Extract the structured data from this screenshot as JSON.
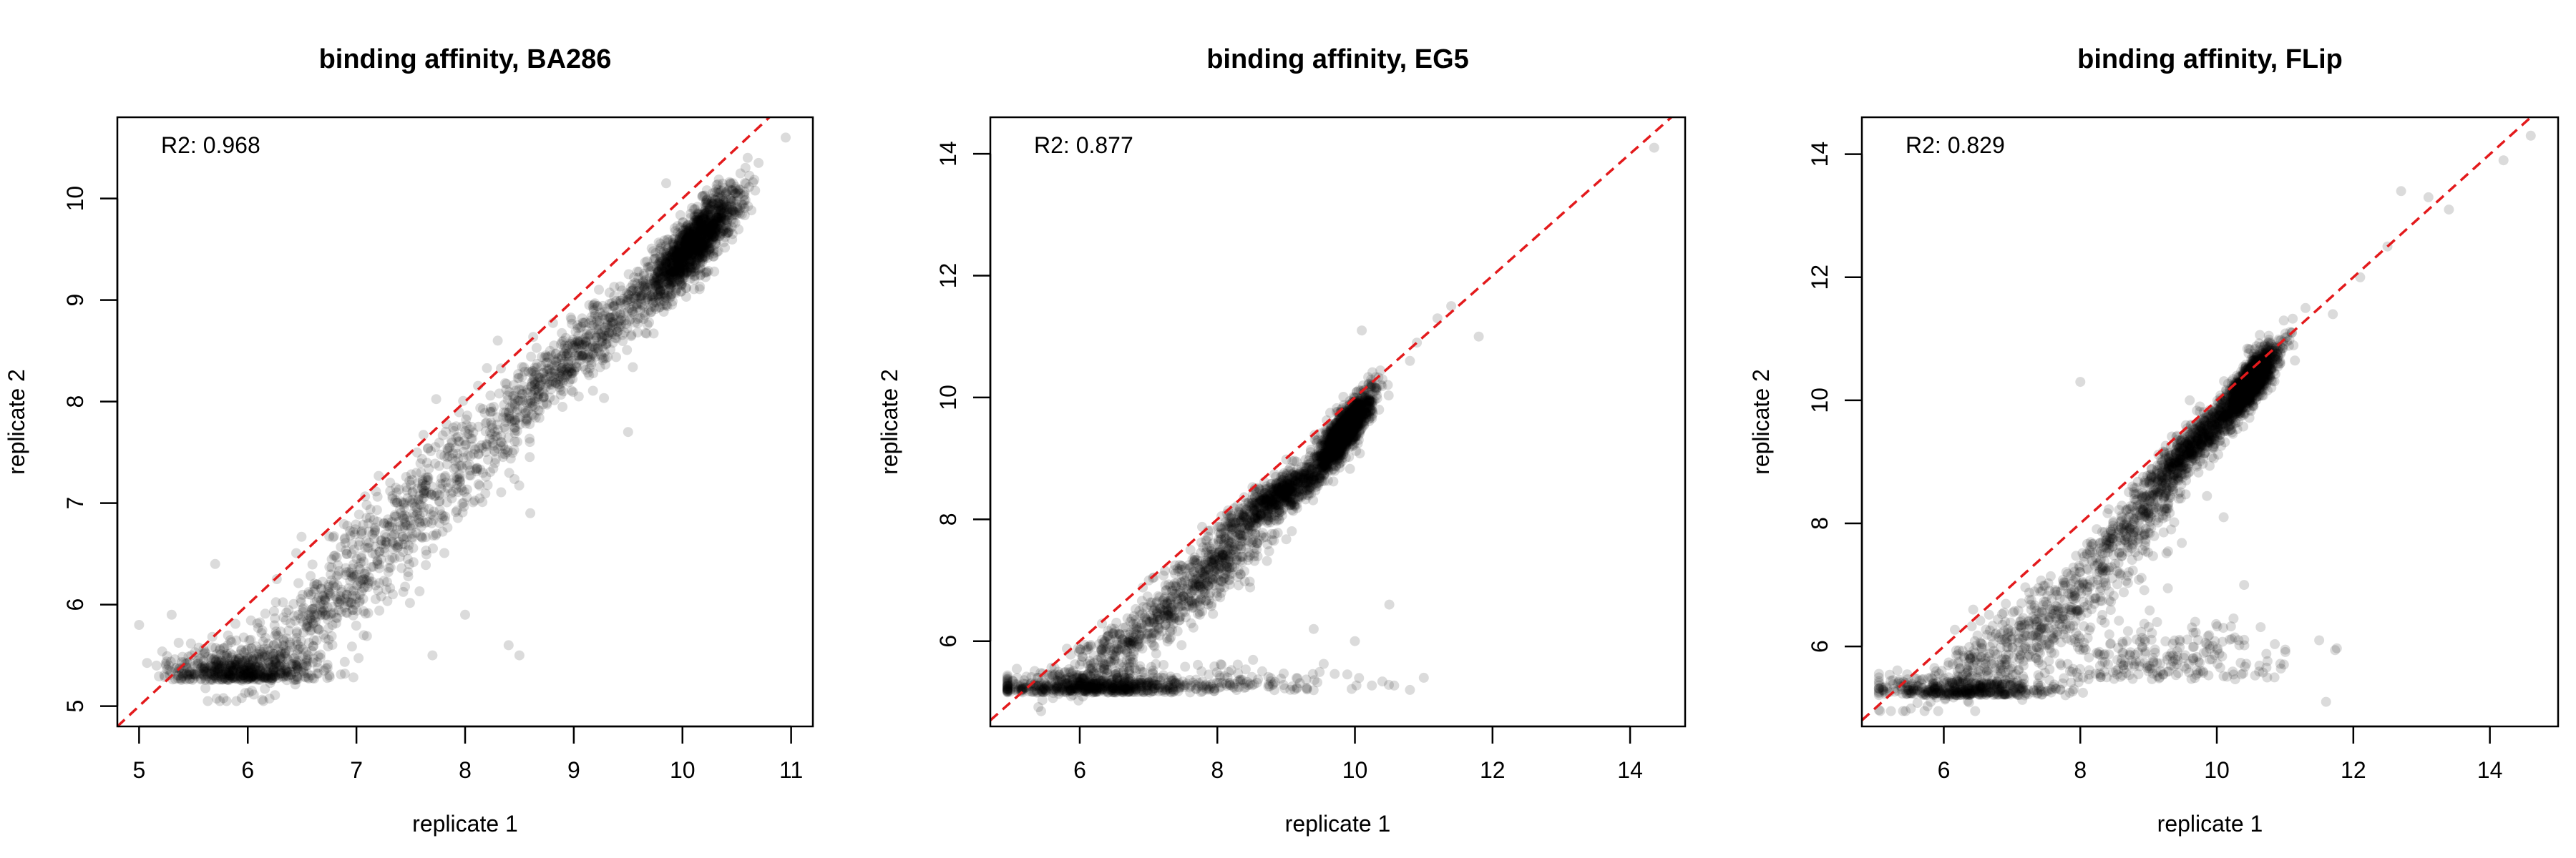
{
  "chart_data": [
    {
      "type": "scatter",
      "title": "binding affinity, BA286",
      "xlabel": "replicate 1",
      "ylabel": "replicate 2",
      "xlim": [
        4.8,
        11.2
      ],
      "ylim": [
        4.8,
        10.8
      ],
      "xticks": [
        5,
        6,
        7,
        8,
        9,
        10,
        11
      ],
      "yticks": [
        5,
        6,
        7,
        8,
        9,
        10
      ],
      "annotation": "R2: 0.968",
      "reference_line": {
        "slope": 1,
        "intercept": 0,
        "color": "#e31a1c",
        "style": "dashed"
      },
      "point_color": "#000000",
      "point_opacity": 0.14,
      "clusters": [
        {
          "cx": 10.1,
          "cy": 9.55,
          "sx": 0.22,
          "sy": 0.25,
          "n": 1300,
          "diag": true,
          "slope": 1.05
        },
        {
          "cx": 9.1,
          "cy": 8.55,
          "sx": 0.45,
          "sy": 0.28,
          "n": 500,
          "diag": true,
          "slope": 0.9
        },
        {
          "cx": 7.9,
          "cy": 7.3,
          "sx": 0.55,
          "sy": 0.45,
          "n": 450,
          "diag": true,
          "slope": 0.95
        },
        {
          "cx": 6.8,
          "cy": 6.1,
          "sx": 0.45,
          "sy": 0.45,
          "n": 400,
          "diag": true,
          "slope": 0.9
        },
        {
          "cx": 5.95,
          "cy": 5.3,
          "sx": 0.35,
          "sy": 0.15,
          "n": 600,
          "diag": false
        }
      ],
      "outliers": [
        [
          10.95,
          10.6
        ],
        [
          10.7,
          10.35
        ],
        [
          8.3,
          8.6
        ],
        [
          8.6,
          6.9
        ],
        [
          8.4,
          5.6
        ],
        [
          8.5,
          5.5
        ],
        [
          8.0,
          5.9
        ],
        [
          7.7,
          5.5
        ],
        [
          9.5,
          7.7
        ],
        [
          5.0,
          5.8
        ],
        [
          5.3,
          5.9
        ],
        [
          5.7,
          6.4
        ],
        [
          9.85,
          10.15
        ],
        [
          10.6,
          10.4
        ]
      ]
    },
    {
      "type": "scatter",
      "title": "binding affinity, EG5",
      "xlabel": "replicate 1",
      "ylabel": "replicate 2",
      "xlim": [
        4.7,
        14.8
      ],
      "ylim": [
        4.6,
        14.6
      ],
      "xticks": [
        6,
        8,
        10,
        12,
        14
      ],
      "yticks": [
        6,
        8,
        10,
        12,
        14
      ],
      "annotation": "R2: 0.877",
      "reference_line": {
        "slope": 1,
        "intercept": 0,
        "color": "#e31a1c",
        "style": "dashed"
      },
      "point_color": "#000000",
      "point_opacity": 0.14,
      "clusters": [
        {
          "cx": 9.85,
          "cy": 9.45,
          "sx": 0.2,
          "sy": 0.3,
          "n": 1300,
          "diag": true,
          "slope": 1.3
        },
        {
          "cx": 8.9,
          "cy": 8.4,
          "sx": 0.4,
          "sy": 0.25,
          "n": 700,
          "diag": true,
          "slope": 0.7
        },
        {
          "cx": 7.9,
          "cy": 7.2,
          "sx": 0.45,
          "sy": 0.45,
          "n": 450,
          "diag": true,
          "slope": 0.8
        },
        {
          "cx": 6.7,
          "cy": 6.0,
          "sx": 0.55,
          "sy": 0.4,
          "n": 350,
          "diag": true,
          "slope": 0.7
        },
        {
          "cx": 6.2,
          "cy": 5.2,
          "sx": 0.75,
          "sy": 0.15,
          "n": 650,
          "diag": false
        },
        {
          "cx": 8.3,
          "cy": 5.25,
          "sx": 1.0,
          "sy": 0.2,
          "n": 120,
          "diag": false
        }
      ],
      "outliers": [
        [
          14.35,
          14.1
        ],
        [
          11.8,
          11.0
        ],
        [
          11.4,
          11.5
        ],
        [
          10.1,
          11.1
        ],
        [
          10.8,
          10.6
        ],
        [
          10.4,
          10.3
        ],
        [
          10.5,
          6.6
        ],
        [
          10.0,
          6.0
        ],
        [
          10.8,
          5.2
        ],
        [
          9.4,
          6.2
        ],
        [
          11.2,
          11.3
        ],
        [
          10.9,
          10.9
        ]
      ]
    },
    {
      "type": "scatter",
      "title": "binding affinity, FLip",
      "xlabel": "replicate 1",
      "ylabel": "replicate 2",
      "xlim": [
        4.8,
        15.0
      ],
      "ylim": [
        4.7,
        14.6
      ],
      "xticks": [
        6,
        8,
        10,
        12,
        14
      ],
      "yticks": [
        6,
        8,
        10,
        12,
        14
      ],
      "annotation": "R2: 0.829",
      "reference_line": {
        "slope": 1,
        "intercept": 0,
        "color": "#e31a1c",
        "style": "dashed"
      },
      "point_color": "#000000",
      "point_opacity": 0.14,
      "clusters": [
        {
          "cx": 10.5,
          "cy": 10.3,
          "sx": 0.2,
          "sy": 0.3,
          "n": 1200,
          "diag": true,
          "slope": 1.2
        },
        {
          "cx": 9.7,
          "cy": 9.3,
          "sx": 0.4,
          "sy": 0.3,
          "n": 700,
          "diag": true,
          "slope": 1.0
        },
        {
          "cx": 8.7,
          "cy": 7.9,
          "sx": 0.45,
          "sy": 0.45,
          "n": 350,
          "diag": true,
          "slope": 1.0
        },
        {
          "cx": 7.2,
          "cy": 6.2,
          "sx": 0.8,
          "sy": 0.55,
          "n": 450,
          "diag": true,
          "slope": 0.6
        },
        {
          "cx": 6.3,
          "cy": 5.25,
          "sx": 0.7,
          "sy": 0.15,
          "n": 450,
          "diag": false
        },
        {
          "cx": 9.0,
          "cy": 5.6,
          "sx": 0.9,
          "sy": 0.45,
          "n": 250,
          "diag": false
        }
      ],
      "outliers": [
        [
          14.6,
          14.3
        ],
        [
          14.2,
          13.9
        ],
        [
          13.4,
          13.1
        ],
        [
          12.7,
          13.4
        ],
        [
          13.1,
          13.3
        ],
        [
          12.5,
          12.5
        ],
        [
          11.5,
          6.1
        ],
        [
          11.6,
          5.1
        ],
        [
          10.4,
          7.0
        ],
        [
          11.1,
          11.1
        ],
        [
          11.7,
          11.4
        ],
        [
          10.1,
          8.1
        ],
        [
          8.0,
          10.3
        ],
        [
          12.1,
          12.0
        ],
        [
          11.3,
          11.5
        ]
      ]
    }
  ]
}
